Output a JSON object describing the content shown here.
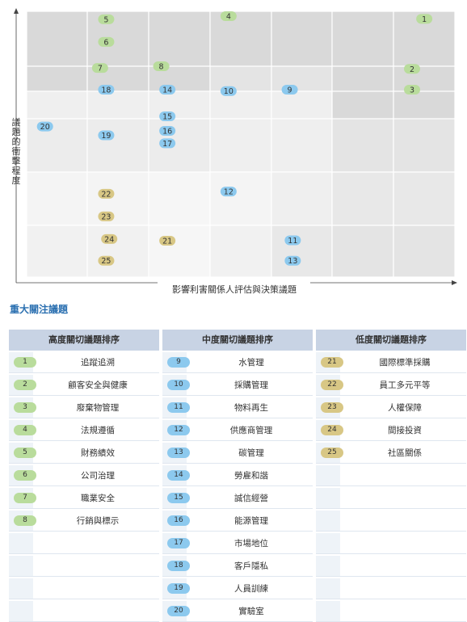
{
  "chart_data": {
    "type": "scatter",
    "title": "",
    "xlabel": "影響利害關係人評估與決策議題",
    "ylabel": "議題的衝擊程度",
    "xlim": [
      0,
      7
    ],
    "ylim": [
      0,
      6
    ],
    "grid": true,
    "points": [
      {
        "id": "1",
        "x": 6.5,
        "y": 5.83,
        "group": "high"
      },
      {
        "id": "2",
        "x": 6.3,
        "y": 4.7,
        "group": "high"
      },
      {
        "id": "3",
        "x": 6.3,
        "y": 4.23,
        "group": "high"
      },
      {
        "id": "4",
        "x": 3.3,
        "y": 5.89,
        "group": "high"
      },
      {
        "id": "5",
        "x": 1.3,
        "y": 5.82,
        "group": "high"
      },
      {
        "id": "6",
        "x": 1.3,
        "y": 5.31,
        "group": "high"
      },
      {
        "id": "7",
        "x": 1.2,
        "y": 4.72,
        "group": "high"
      },
      {
        "id": "8",
        "x": 2.2,
        "y": 4.76,
        "group": "high"
      },
      {
        "id": "9",
        "x": 4.3,
        "y": 4.23,
        "group": "mid"
      },
      {
        "id": "10",
        "x": 3.3,
        "y": 4.2,
        "group": "mid"
      },
      {
        "id": "11",
        "x": 4.35,
        "y": 0.83,
        "group": "mid"
      },
      {
        "id": "12",
        "x": 3.3,
        "y": 1.93,
        "group": "mid"
      },
      {
        "id": "13",
        "x": 4.35,
        "y": 0.37,
        "group": "mid"
      },
      {
        "id": "14",
        "x": 2.3,
        "y": 4.23,
        "group": "mid"
      },
      {
        "id": "15",
        "x": 2.3,
        "y": 3.63,
        "group": "mid"
      },
      {
        "id": "16",
        "x": 2.3,
        "y": 3.3,
        "group": "mid"
      },
      {
        "id": "17",
        "x": 2.3,
        "y": 3.02,
        "group": "mid"
      },
      {
        "id": "18",
        "x": 1.3,
        "y": 4.23,
        "group": "mid"
      },
      {
        "id": "19",
        "x": 1.3,
        "y": 3.2,
        "group": "mid"
      },
      {
        "id": "20",
        "x": 0.3,
        "y": 3.4,
        "group": "mid"
      },
      {
        "id": "21",
        "x": 2.3,
        "y": 0.82,
        "group": "low"
      },
      {
        "id": "22",
        "x": 1.3,
        "y": 1.88,
        "group": "low"
      },
      {
        "id": "23",
        "x": 1.3,
        "y": 1.37,
        "group": "low"
      },
      {
        "id": "24",
        "x": 1.35,
        "y": 0.86,
        "group": "low"
      },
      {
        "id": "25",
        "x": 1.3,
        "y": 0.37,
        "group": "low"
      }
    ]
  },
  "colors": {
    "high": "#b9dc9c",
    "mid": "#8cc9ee",
    "low": "#d8c785",
    "header": "#c8d3e4",
    "title": "#2a6fb0"
  },
  "section_title": "重大關注議題",
  "tables": [
    {
      "header": "高度關切議題排序",
      "group": "high",
      "rows": [
        {
          "id": "1",
          "name": "追蹤追溯"
        },
        {
          "id": "2",
          "name": "顧客安全與健康"
        },
        {
          "id": "3",
          "name": "廢棄物管理"
        },
        {
          "id": "4",
          "name": "法規遵循"
        },
        {
          "id": "5",
          "name": "財務績效"
        },
        {
          "id": "6",
          "name": "公司治理"
        },
        {
          "id": "7",
          "name": "職業安全"
        },
        {
          "id": "8",
          "name": "行銷與標示"
        }
      ]
    },
    {
      "header": "中度關切議題排序",
      "group": "mid",
      "rows": [
        {
          "id": "9",
          "name": "水管理"
        },
        {
          "id": "10",
          "name": "採購管理"
        },
        {
          "id": "11",
          "name": "物料再生"
        },
        {
          "id": "12",
          "name": "供應商管理"
        },
        {
          "id": "13",
          "name": "碳管理"
        },
        {
          "id": "14",
          "name": "勞雇和諧"
        },
        {
          "id": "15",
          "name": "誠信經營"
        },
        {
          "id": "16",
          "name": "能源管理"
        },
        {
          "id": "17",
          "name": "市場地位"
        },
        {
          "id": "18",
          "name": "客戶隱私"
        },
        {
          "id": "19",
          "name": "人員訓練"
        },
        {
          "id": "20",
          "name": "實驗室"
        }
      ]
    },
    {
      "header": "低度關切議題排序",
      "group": "low",
      "rows": [
        {
          "id": "21",
          "name": "國際標準採購"
        },
        {
          "id": "22",
          "name": "員工多元平等"
        },
        {
          "id": "23",
          "name": "人權保障"
        },
        {
          "id": "24",
          "name": "間接投資"
        },
        {
          "id": "25",
          "name": "社區關係"
        }
      ]
    }
  ]
}
